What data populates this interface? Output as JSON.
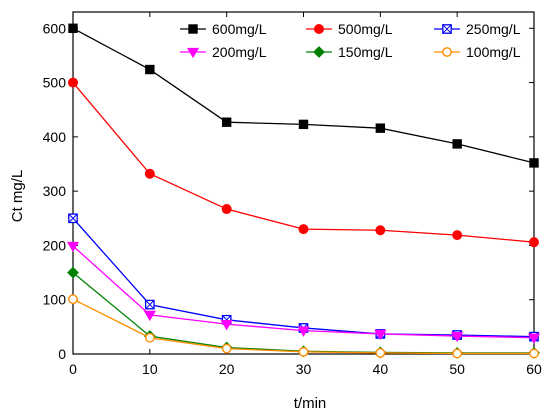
{
  "chart_data": {
    "type": "line",
    "title": "",
    "xlabel": "t/min",
    "ylabel": "Ct  mg/L",
    "xlim": [
      0,
      60
    ],
    "ylim": [
      0,
      630
    ],
    "xticks": [
      0,
      10,
      20,
      30,
      40,
      50,
      60
    ],
    "yticks": [
      0,
      100,
      200,
      300,
      400,
      500,
      600
    ],
    "grid": false,
    "legend_position": "top-right",
    "x": [
      0,
      10,
      20,
      30,
      40,
      50,
      60
    ],
    "series": [
      {
        "name": "600mg/L",
        "values": [
          600,
          524,
          427,
          423,
          416,
          387,
          352
        ],
        "color": "#000000",
        "marker": "square-filled"
      },
      {
        "name": "500mg/L",
        "values": [
          500,
          332,
          267,
          230,
          228,
          219,
          206
        ],
        "color": "#ff0000",
        "marker": "circle-filled"
      },
      {
        "name": "250mg/L",
        "values": [
          250,
          91,
          63,
          48,
          37,
          35,
          32
        ],
        "color": "#0000ff",
        "marker": "square-crossed"
      },
      {
        "name": "200mg/L",
        "values": [
          199,
          72,
          55,
          43,
          37,
          33,
          30
        ],
        "color": "#ff00ff",
        "marker": "triangle-down-filled"
      },
      {
        "name": "150mg/L",
        "values": [
          150,
          33,
          12,
          5,
          3,
          2,
          2
        ],
        "color": "#008000",
        "marker": "diamond-filled"
      },
      {
        "name": "100mg/L",
        "values": [
          101,
          30,
          10,
          4,
          2,
          1,
          1
        ],
        "color": "#ff8c00",
        "marker": "circle-open"
      }
    ]
  }
}
